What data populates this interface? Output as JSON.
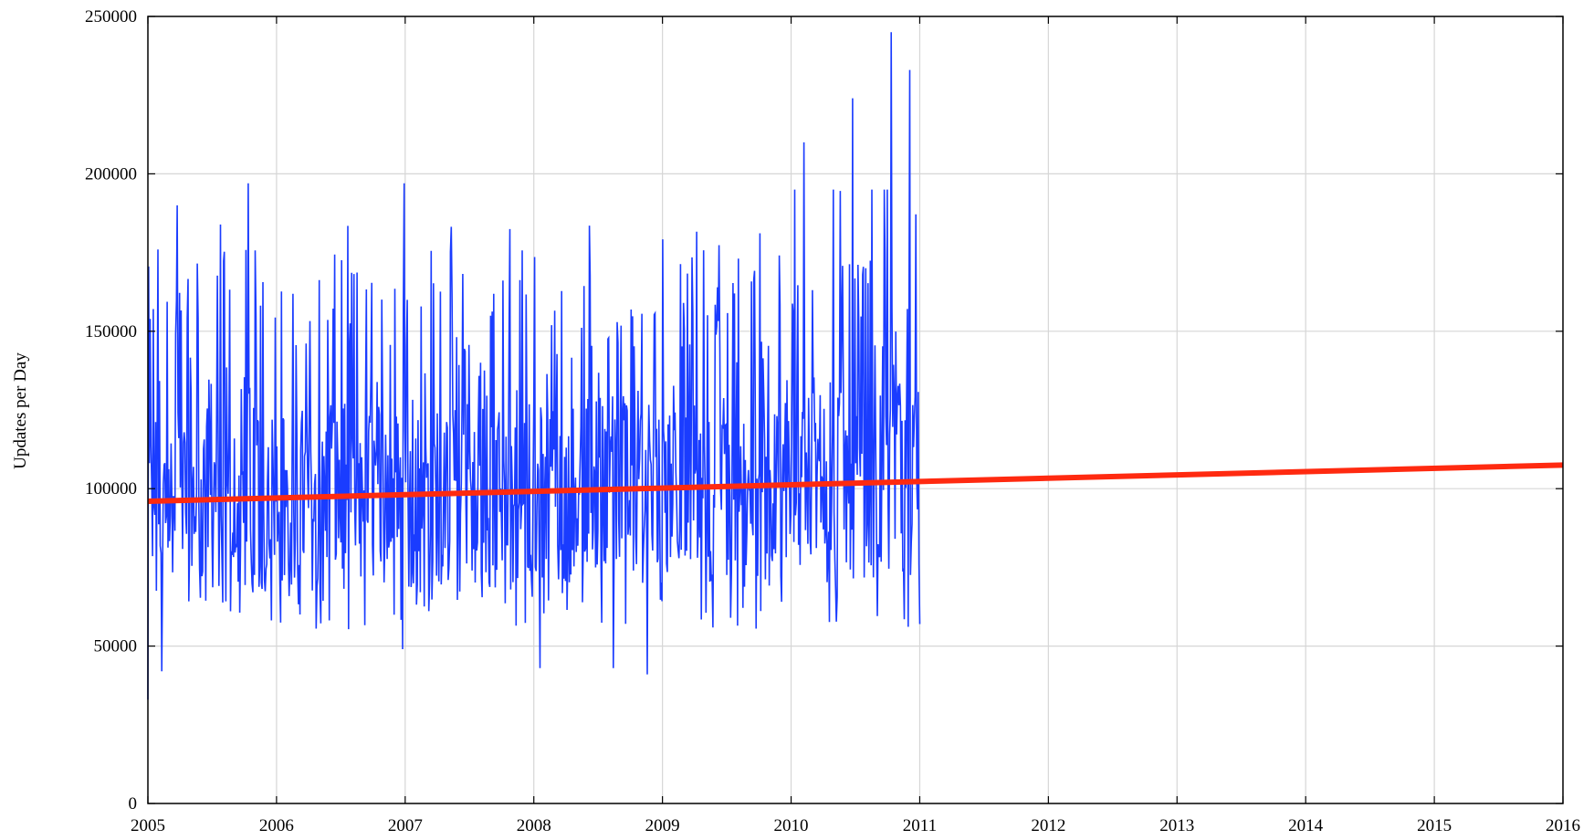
{
  "chart_data": {
    "type": "line",
    "title": "",
    "xlabel": "",
    "ylabel": "Updates per Day",
    "xlim": [
      2005,
      2016
    ],
    "ylim": [
      0,
      250000
    ],
    "x_ticks": [
      "2005",
      "2006",
      "2007",
      "2008",
      "2009",
      "2010",
      "2011",
      "2012",
      "2013",
      "2014",
      "2015",
      "2016"
    ],
    "y_ticks": [
      "0",
      "50000",
      "100000",
      "150000",
      "200000",
      "250000"
    ],
    "grid": true,
    "legend": "none",
    "series": [
      {
        "color": "#1a3cff",
        "x_range": [
          2005.0,
          2011.0
        ],
        "summary": "daily values fluctuating mostly between 50000 and 190000, peaks up to about 245000 in late 2010",
        "notable_points": [
          {
            "x": 2005.0,
            "y": 33000
          },
          {
            "x": 2005.08,
            "y": 176000
          },
          {
            "x": 2005.11,
            "y": 42000
          },
          {
            "x": 2005.23,
            "y": 190000
          },
          {
            "x": 2005.78,
            "y": 197000
          },
          {
            "x": 2006.99,
            "y": 197000
          },
          {
            "x": 2006.98,
            "y": 49000
          },
          {
            "x": 2008.05,
            "y": 43000
          },
          {
            "x": 2008.62,
            "y": 43000
          },
          {
            "x": 2008.88,
            "y": 41000
          },
          {
            "x": 2010.1,
            "y": 210000
          },
          {
            "x": 2010.48,
            "y": 224000
          },
          {
            "x": 2010.78,
            "y": 245000
          },
          {
            "x": 2010.92,
            "y": 233000
          },
          {
            "x": 2011.0,
            "y": 57000
          }
        ]
      },
      {
        "color": "#ff2a10",
        "x": [
          2005,
          2016
        ],
        "y": [
          96000,
          107500
        ]
      }
    ]
  }
}
